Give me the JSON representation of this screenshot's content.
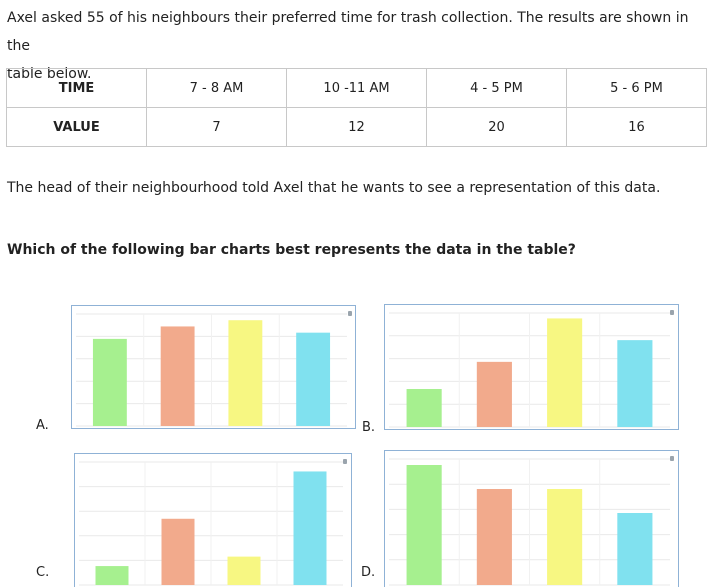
{
  "intro": {
    "line1": "Axel asked 55 of his neighbours their preferred time for trash collection. The results are shown in the",
    "line2": "table below."
  },
  "table": {
    "row_header_time": "TIME",
    "row_header_value": "VALUE",
    "times": [
      "7 - 8  AM",
      "10 -11 AM",
      "4 - 5 PM",
      "5 - 6 PM"
    ],
    "values": [
      "7",
      "12",
      "20",
      "16"
    ]
  },
  "paragraph2": "The head of their neighbourhood told Axel that he wants to see a representation of this data.",
  "question": "Which of the following bar charts best represents the data in the table?",
  "bar_colors": [
    "#a6f08f",
    "#f2aa8c",
    "#f7f782",
    "#80e1ef"
  ],
  "chart_data": [
    {
      "type": "bar",
      "option": "A.",
      "values": [
        14,
        16,
        17,
        15
      ],
      "ylim": [
        0,
        18
      ]
    },
    {
      "type": "bar",
      "option": "B.",
      "values": [
        7,
        12,
        20,
        16
      ],
      "ylim": [
        0,
        21
      ]
    },
    {
      "type": "bar",
      "option": "C.",
      "values": [
        2,
        7,
        3,
        12
      ],
      "ylim": [
        0,
        13
      ]
    },
    {
      "type": "bar",
      "option": "D.",
      "values": [
        20,
        16,
        16,
        12
      ],
      "ylim": [
        0,
        21
      ]
    }
  ]
}
